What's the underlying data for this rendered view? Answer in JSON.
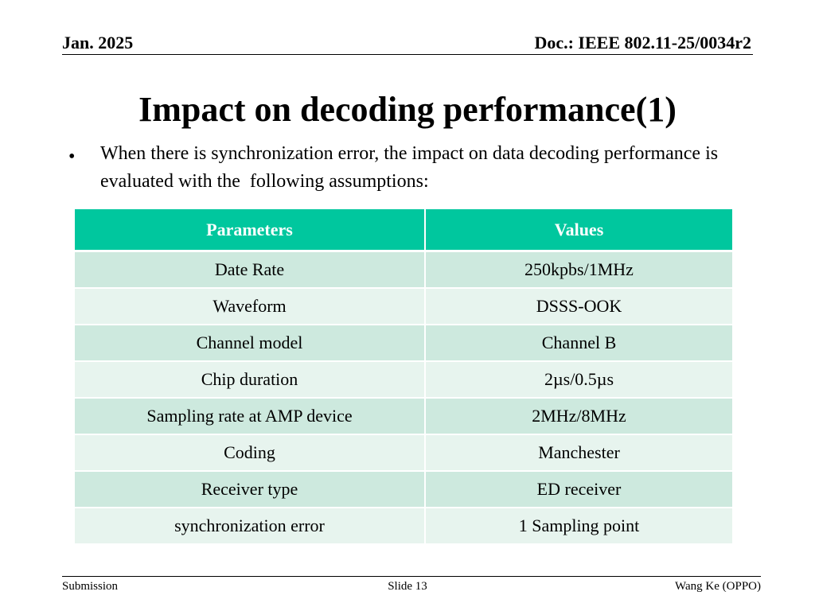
{
  "header": {
    "date": "Jan. 2025",
    "doc": "Doc.: IEEE 802.11-25/0034r2"
  },
  "title": "Impact on decoding performance(1)",
  "bullet": {
    "symbol": "•",
    "text": "When there is synchronization error, the impact on data decoding performance is evaluated with the  following assumptions:"
  },
  "table": {
    "headers": [
      "Parameters",
      "Values"
    ],
    "rows": [
      [
        "Date Rate",
        "250kpbs/1MHz"
      ],
      [
        "Waveform",
        "DSSS-OOK"
      ],
      [
        "Channel model",
        "Channel B"
      ],
      [
        "Chip duration",
        "2µs/0.5µs"
      ],
      [
        "Sampling rate at AMP device",
        "2MHz/8MHz"
      ],
      [
        "Coding",
        "Manchester"
      ],
      [
        "Receiver type",
        "ED receiver"
      ],
      [
        "synchronization error",
        "1 Sampling point"
      ]
    ]
  },
  "footer": {
    "left": "Submission",
    "center": "Slide 13",
    "right": "Wang Ke (OPPO)"
  },
  "colors": {
    "table_header": "#00c79e",
    "row_dark": "#cde9de",
    "row_light": "#e7f4ee"
  }
}
